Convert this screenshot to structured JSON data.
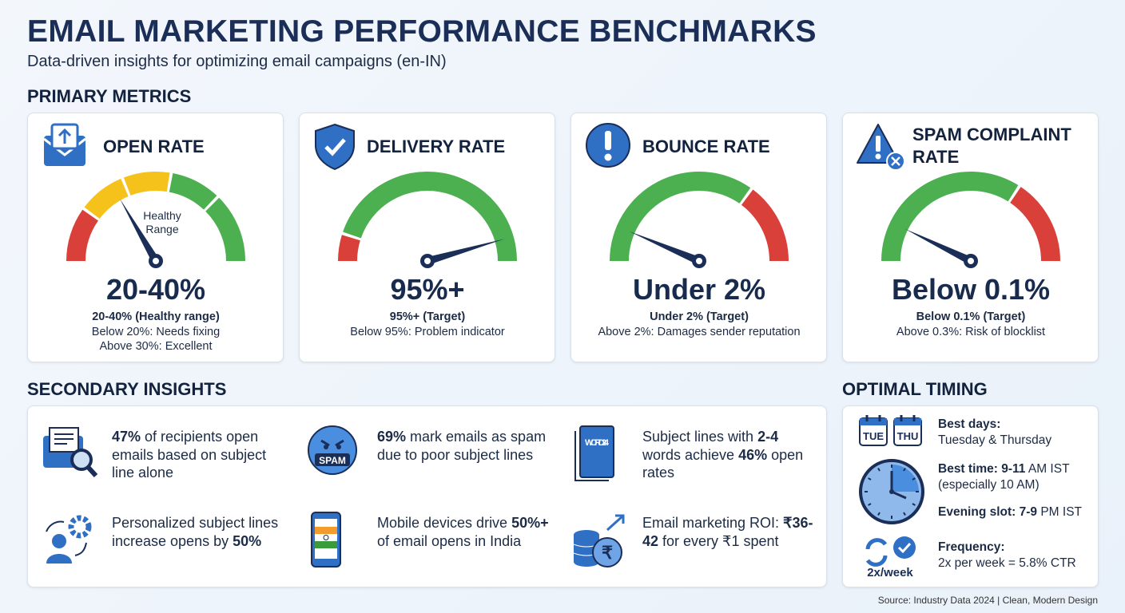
{
  "header": {
    "title": "EMAIL MARKETING PERFORMANCE BENCHMARKS",
    "subtitle": "Data-driven insights for optimizing email campaigns (en-IN)"
  },
  "primary": {
    "heading": "PRIMARY METRICS",
    "cards": [
      {
        "title": "OPEN RATE",
        "gauge_label": "Healthy Range",
        "value": "20-40%",
        "lines": [
          {
            "text": "20-40% (Healthy range)",
            "bold": true
          },
          {
            "text": "Below 20%: Needs fixing"
          },
          {
            "text": "Above 30%: Excellent"
          }
        ]
      },
      {
        "title": "DELIVERY RATE",
        "value": "95%+",
        "lines": [
          {
            "text": "95%+ (Target)",
            "bold": true
          },
          {
            "text": "Below 95%: Problem indicator"
          }
        ]
      },
      {
        "title": "BOUNCE RATE",
        "value": "Under 2%",
        "lines": [
          {
            "text": "Under 2% (Target)",
            "bold": true
          },
          {
            "text": "Above 2%: Damages sender reputation"
          }
        ]
      },
      {
        "title": "SPAM COMPLAINT RATE",
        "value": "Below 0.1%",
        "lines": [
          {
            "text": "Below 0.1% (Target)",
            "bold": true
          },
          {
            "text": "Above 0.3%: Risk of blocklist"
          }
        ]
      }
    ]
  },
  "secondary": {
    "heading": "SECONDARY INSIGHTS",
    "items": [
      {
        "parts": [
          {
            "text": "47%",
            "bold": true
          },
          {
            "text": " of recipients open emails based on subject line alone"
          }
        ]
      },
      {
        "icon_text": "SPAM",
        "parts": [
          {
            "text": "69%",
            "bold": true
          },
          {
            "text": " mark emails as spam due to poor subject lines"
          }
        ]
      },
      {
        "icon_text": "WORD 2-4",
        "parts": [
          {
            "text": "Subject lines with "
          },
          {
            "text": "2-4",
            "bold": true
          },
          {
            "text": " words achieve "
          },
          {
            "text": "46%",
            "bold": true
          },
          {
            "text": " open rates"
          }
        ]
      },
      {
        "parts": [
          {
            "text": "Personalized subject lines increase opens by "
          },
          {
            "text": "50%",
            "bold": true
          }
        ]
      },
      {
        "parts": [
          {
            "text": "Mobile devices drive "
          },
          {
            "text": "50%+",
            "bold": true
          },
          {
            "text": " of email opens in India"
          }
        ]
      },
      {
        "parts": [
          {
            "text": "Email marketing ROI: "
          },
          {
            "text": "₹36-42",
            "bold": true
          },
          {
            "text": " for every ₹1 spent"
          }
        ]
      }
    ]
  },
  "timing": {
    "heading": "OPTIMAL TIMING",
    "days_icon": [
      "TUE",
      "THU"
    ],
    "frequency_icon": "2x/week",
    "items": [
      {
        "lines": [
          [
            {
              "text": "Best days:",
              "bold": true
            }
          ],
          [
            {
              "text": "Tuesday & Thursday"
            }
          ]
        ]
      },
      {
        "lines": [
          [
            {
              "text": "Best time: ",
              "bold": true
            },
            {
              "text": "9-11",
              "bold": true
            },
            {
              "text": " AM IST"
            }
          ],
          [
            {
              "text": "(especially 10 AM)"
            }
          ]
        ]
      },
      {
        "lines": [
          [
            {
              "text": "Evening slot: ",
              "bold": true
            },
            {
              "text": "7-9",
              "bold": true
            },
            {
              "text": " PM IST"
            }
          ]
        ]
      },
      {
        "lines": [
          [
            {
              "text": "Frequency:",
              "bold": true
            }
          ],
          [
            {
              "text": "2x per week = 5.8% CTR"
            }
          ]
        ]
      }
    ]
  },
  "footer": {
    "source": "Source: Industry Data 2024 | Clean, Modern Design"
  }
}
